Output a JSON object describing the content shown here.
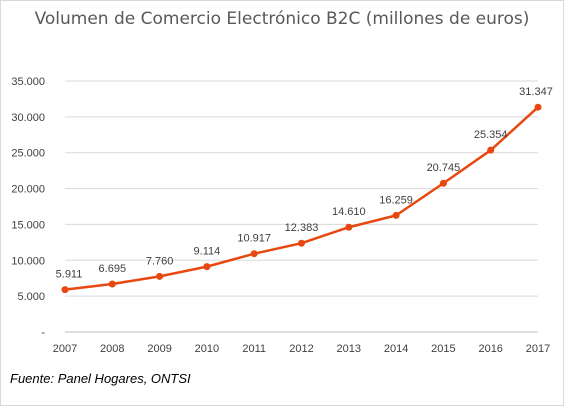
{
  "chart_data": {
    "type": "line",
    "title": "Volumen de Comercio Electrónico B2C (millones de euros)",
    "xlabel": "",
    "ylabel": "",
    "categories": [
      "2007",
      "2008",
      "2009",
      "2010",
      "2011",
      "2012",
      "2013",
      "2014",
      "2015",
      "2016",
      "2017"
    ],
    "values": [
      5911,
      6695,
      7760,
      9114,
      10917,
      12383,
      14610,
      16259,
      20745,
      25354,
      31347
    ],
    "data_labels": [
      "5.911",
      "6.695",
      "7.760",
      "9.114",
      "10.917",
      "12.383",
      "14.610",
      "16.259",
      "20.745",
      "25.354",
      "31.347"
    ],
    "ylim": [
      0,
      35000
    ],
    "yticks": [
      0,
      5000,
      10000,
      15000,
      20000,
      25000,
      30000,
      35000
    ],
    "ytick_labels": [
      "-",
      "5.000",
      "10.000",
      "15.000",
      "20.000",
      "25.000",
      "30.000",
      "35.000"
    ],
    "grid": true,
    "line_color": "#E8480F",
    "grid_color": "#D9D9D9"
  },
  "source": "Fuente: Panel Hogares, ONTSI"
}
